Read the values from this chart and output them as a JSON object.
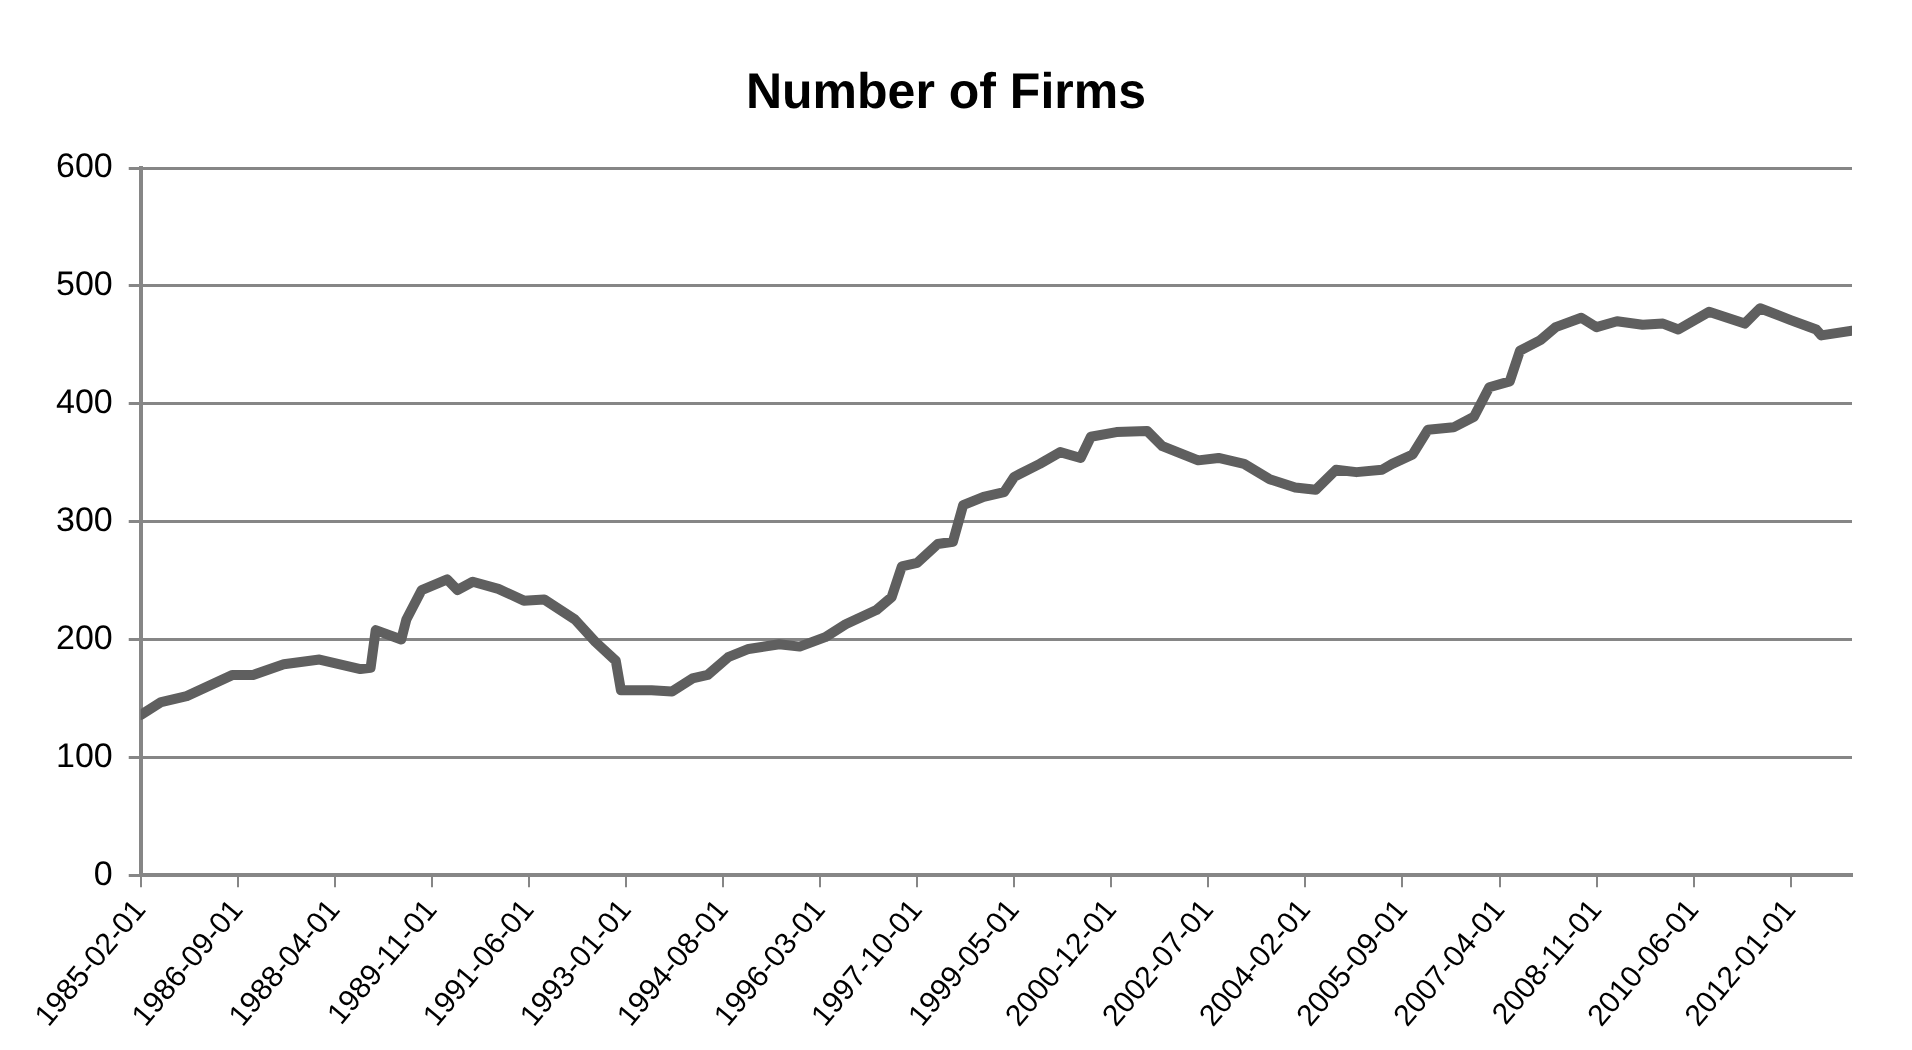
{
  "chart_data": {
    "type": "line",
    "title": "Number of Firms",
    "x": [
      "1985-02-01",
      "1985-06-01",
      "1985-11-01",
      "1986-08-01",
      "1986-12-01",
      "1987-06-01",
      "1988-01-01",
      "1988-09-01",
      "1988-11-01",
      "1988-12-01",
      "1989-05-01",
      "1989-06-01",
      "1989-09-01",
      "1990-02-01",
      "1990-04-01",
      "1990-07-01",
      "1990-12-01",
      "1991-05-01",
      "1991-09-01",
      "1992-03-01",
      "1992-07-01",
      "1992-11-01",
      "1992-12-01",
      "1993-06-01",
      "1993-10-01",
      "1994-02-01",
      "1994-05-01",
      "1994-09-01",
      "1995-01-01",
      "1995-07-01",
      "1995-11-01",
      "1996-04-01",
      "1996-08-01",
      "1997-02-01",
      "1997-05-01",
      "1997-07-01",
      "1997-10-01",
      "1998-02-01",
      "1998-05-01",
      "1998-07-01",
      "1998-11-01",
      "1999-03-01",
      "1999-05-01",
      "1999-10-01",
      "2000-02-01",
      "2000-06-01",
      "2000-08-01",
      "2001-01-01",
      "2001-07-01",
      "2001-10-01",
      "2002-05-01",
      "2002-09-01",
      "2003-02-01",
      "2003-07-01",
      "2003-12-01",
      "2004-04-01",
      "2004-08-01",
      "2004-12-01",
      "2005-05-01",
      "2005-07-01",
      "2005-11-01",
      "2006-02-01",
      "2006-07-01",
      "2006-11-01",
      "2007-02-01",
      "2007-06-01",
      "2007-08-01",
      "2007-12-01",
      "2008-03-01",
      "2008-08-01",
      "2008-11-01",
      "2009-03-01",
      "2009-08-01",
      "2009-12-01",
      "2010-03-01",
      "2010-09-01",
      "2011-04-01",
      "2011-07-01",
      "2012-01-01",
      "2012-06-01",
      "2012-07-01",
      "2013-01-01"
    ],
    "series": [
      {
        "color": "#5f5f5f",
        "values": [
          136,
          147,
          152,
          170,
          170,
          179,
          183,
          175,
          176,
          208,
          200,
          217,
          242,
          251,
          242,
          249,
          243,
          233,
          234,
          217,
          198,
          182,
          157,
          157,
          156,
          167,
          170,
          185,
          192,
          196,
          194,
          202,
          213,
          225,
          236,
          262,
          265,
          281,
          283,
          314,
          321,
          325,
          338,
          349,
          359,
          354,
          372,
          376,
          377,
          364,
          352,
          354,
          349,
          336,
          329,
          327,
          344,
          342,
          344,
          349,
          357,
          378,
          380,
          389,
          414,
          419,
          445,
          454,
          465,
          473,
          465,
          470,
          467,
          468,
          463,
          478,
          468,
          481,
          471,
          463,
          458,
          462
        ]
      }
    ],
    "xlim": [
      "1985-02-01",
      "2013-01-01"
    ],
    "xticks": [
      "1985-02-01",
      "1986-09-01",
      "1988-04-01",
      "1989-11-01",
      "1991-06-01",
      "1993-01-01",
      "1994-08-01",
      "1996-03-01",
      "1997-10-01",
      "1999-05-01",
      "2000-12-01",
      "2002-07-01",
      "2004-02-01",
      "2005-09-01",
      "2007-04-01",
      "2008-11-01",
      "2010-06-01",
      "2012-01-01"
    ],
    "ylim": [
      0,
      600
    ],
    "yticks": [
      0,
      100,
      200,
      300,
      400,
      500,
      600
    ],
    "grid": "y",
    "legend": false,
    "marker": "none",
    "line_style": "solid"
  }
}
